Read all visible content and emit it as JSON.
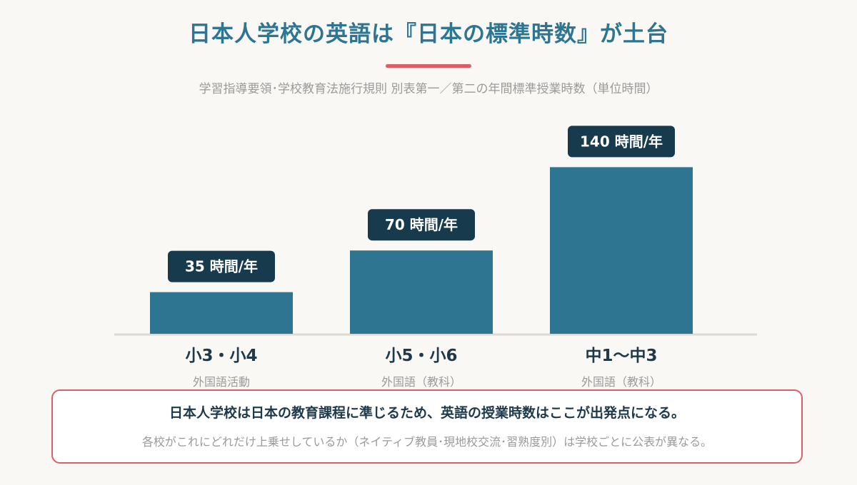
{
  "header": {
    "title": "日本人学校の英語は『日本の標準時数』が土台",
    "subtitle": "学習指導要領･学校教育法施行規則 別表第一／第二の年間標準授業時数（単位時間）"
  },
  "chart_data": {
    "type": "bar",
    "categories": [
      "小3・小4",
      "小5・小6",
      "中1〜中3"
    ],
    "category_sublabels": [
      "外国語活動",
      "外国語（教科）",
      "外国語（教科）"
    ],
    "values": [
      35,
      70,
      140
    ],
    "data_labels": [
      "35 時間/年",
      "70 時間/年",
      "140 時間/年"
    ],
    "ylim": [
      0,
      160
    ],
    "grid": false,
    "bar_color": "#2e7591",
    "label_bg_color": "#173a4d"
  },
  "callout": {
    "main": "日本人学校は日本の教育課程に準じるため、英語の授業時数はここが出発点になる。",
    "sub": "各校がこれにどれだけ上乗せしているか（ネイティブ教員･現地校交流･習熟度別）は学校ごとに公表が異なる。",
    "border_color": "#dc5e68"
  }
}
